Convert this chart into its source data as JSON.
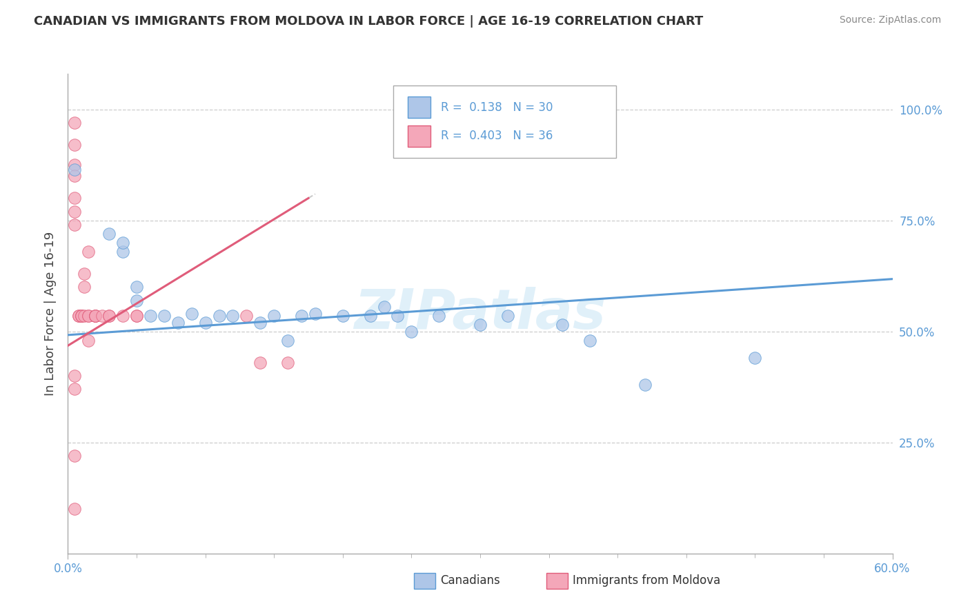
{
  "title": "CANADIAN VS IMMIGRANTS FROM MOLDOVA IN LABOR FORCE | AGE 16-19 CORRELATION CHART",
  "source": "Source: ZipAtlas.com",
  "ylabel": "In Labor Force | Age 16-19",
  "xlim": [
    0.0,
    0.6
  ],
  "ylim": [
    0.0,
    1.05
  ],
  "r_canadian": 0.138,
  "n_canadian": 30,
  "r_moldova": 0.403,
  "n_moldova": 36,
  "canadian_color": "#aec6e8",
  "moldova_color": "#f4a7b9",
  "canadian_line_color": "#5b9bd5",
  "moldova_line_color": "#e05c7a",
  "watermark": "ZIPatlas",
  "canadians_scatter_x": [
    0.005,
    0.03,
    0.04,
    0.04,
    0.05,
    0.05,
    0.06,
    0.07,
    0.08,
    0.09,
    0.1,
    0.11,
    0.12,
    0.14,
    0.15,
    0.16,
    0.17,
    0.18,
    0.2,
    0.22,
    0.24,
    0.25,
    0.27,
    0.3,
    0.32,
    0.36,
    0.38,
    0.5,
    0.23,
    0.42
  ],
  "canadians_scatter_y": [
    0.865,
    0.72,
    0.68,
    0.7,
    0.57,
    0.6,
    0.535,
    0.535,
    0.52,
    0.54,
    0.52,
    0.535,
    0.535,
    0.52,
    0.535,
    0.48,
    0.535,
    0.54,
    0.535,
    0.535,
    0.535,
    0.5,
    0.535,
    0.515,
    0.535,
    0.515,
    0.48,
    0.44,
    0.555,
    0.38
  ],
  "moldova_scatter_x": [
    0.005,
    0.005,
    0.005,
    0.005,
    0.005,
    0.005,
    0.005,
    0.008,
    0.008,
    0.01,
    0.01,
    0.01,
    0.012,
    0.012,
    0.012,
    0.015,
    0.015,
    0.015,
    0.015,
    0.02,
    0.02,
    0.02,
    0.02,
    0.025,
    0.03,
    0.03,
    0.04,
    0.05,
    0.05,
    0.13,
    0.14,
    0.16,
    0.005,
    0.005,
    0.005,
    0.005
  ],
  "moldova_scatter_y": [
    0.97,
    0.92,
    0.875,
    0.85,
    0.8,
    0.77,
    0.74,
    0.535,
    0.535,
    0.535,
    0.535,
    0.535,
    0.63,
    0.6,
    0.535,
    0.68,
    0.535,
    0.535,
    0.48,
    0.535,
    0.535,
    0.535,
    0.535,
    0.535,
    0.535,
    0.535,
    0.535,
    0.535,
    0.535,
    0.535,
    0.43,
    0.43,
    0.4,
    0.37,
    0.22,
    0.1
  ]
}
